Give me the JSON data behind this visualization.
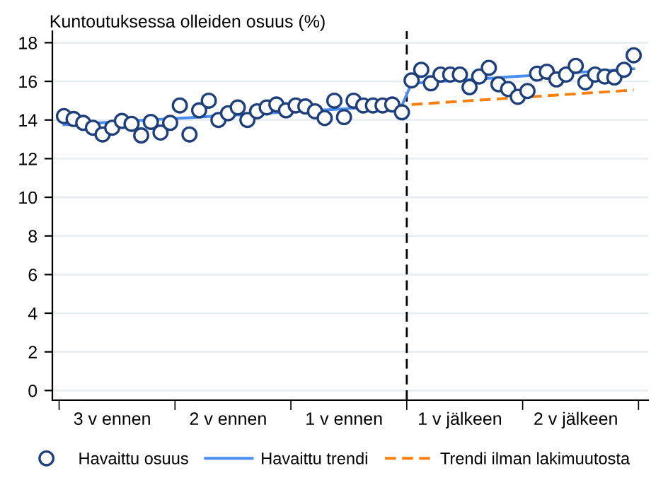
{
  "chart_data": {
    "type": "scatter",
    "ylabel": "Kuntoutuksessa olleiden osuus (%)",
    "categories": [
      null,
      null,
      null,
      null,
      null,
      "3 v ennen",
      null,
      null,
      null,
      null,
      null,
      null,
      null,
      null,
      null,
      null,
      null,
      "2 v ennen",
      null,
      null,
      null,
      null,
      null,
      null,
      null,
      null,
      null,
      null,
      null,
      "1 v ennen",
      null,
      null,
      null,
      null,
      null,
      null,
      null,
      null,
      null,
      null,
      null,
      "1 v jälkeen",
      null,
      null,
      null,
      null,
      null,
      null,
      null,
      null,
      null,
      null,
      null,
      "2 v jälkeen",
      null,
      null,
      null,
      null,
      null,
      null
    ],
    "ylim": [
      -0.5,
      18.6
    ],
    "yticks": [
      0,
      2,
      4,
      6,
      8,
      10,
      12,
      14,
      16,
      18
    ],
    "grid": "y",
    "legend": "bottom",
    "series": [
      {
        "name": "Havaittu osuus",
        "marker": "circle",
        "color": "#1f3f7a",
        "values": [
          14.2,
          14.05,
          13.85,
          13.6,
          13.25,
          13.6,
          13.95,
          13.8,
          13.2,
          13.9,
          13.35,
          13.85,
          14.75,
          13.25,
          14.5,
          15.0,
          14.0,
          14.35,
          14.65,
          14.0,
          14.45,
          14.65,
          14.8,
          14.5,
          14.75,
          14.7,
          14.45,
          14.1,
          15.0,
          14.15,
          15.0,
          14.75,
          14.75,
          14.75,
          14.8,
          14.4,
          16.05,
          16.6,
          15.9,
          16.35,
          16.35,
          16.35,
          15.7,
          16.25,
          16.7,
          15.85,
          15.6,
          15.2,
          15.5,
          16.4,
          16.5,
          16.1,
          16.35,
          16.8,
          15.95,
          16.35,
          16.25,
          16.2,
          16.6,
          17.35
        ]
      },
      {
        "name": "Havaittu trendi",
        "type": "line",
        "marker": "none",
        "line_style": "solid",
        "color": "#4a8df0",
        "values": [
          13.75,
          13.78,
          13.81,
          13.84,
          13.86,
          13.89,
          13.92,
          13.95,
          13.98,
          14.01,
          14.04,
          14.06,
          14.09,
          14.12,
          14.15,
          14.18,
          14.21,
          14.24,
          14.26,
          14.29,
          14.32,
          14.35,
          14.38,
          14.41,
          14.44,
          14.46,
          14.49,
          14.52,
          14.55,
          14.58,
          14.61,
          14.64,
          14.66,
          14.69,
          14.72,
          14.75,
          15.9,
          15.93,
          15.97,
          16.0,
          16.03,
          16.06,
          16.1,
          16.13,
          16.16,
          16.19,
          16.23,
          16.26,
          16.29,
          16.32,
          16.36,
          16.39,
          16.42,
          16.45,
          16.49,
          16.52,
          16.55,
          16.58,
          16.62,
          16.65
        ]
      },
      {
        "name": "Trendi ilman lakimuutosta",
        "type": "line",
        "marker": "none",
        "line_style": "dashed",
        "color": "#ff7f0e",
        "values": [
          null,
          null,
          null,
          null,
          null,
          null,
          null,
          null,
          null,
          null,
          null,
          null,
          null,
          null,
          null,
          null,
          null,
          null,
          null,
          null,
          null,
          null,
          null,
          null,
          null,
          null,
          null,
          null,
          null,
          null,
          null,
          null,
          null,
          null,
          null,
          null,
          14.8,
          14.83,
          14.87,
          14.9,
          14.93,
          14.96,
          15.0,
          15.03,
          15.06,
          15.09,
          15.13,
          15.16,
          15.19,
          15.22,
          15.26,
          15.29,
          15.32,
          15.35,
          15.39,
          15.42,
          15.45,
          15.48,
          15.52,
          15.55
        ]
      }
    ]
  }
}
